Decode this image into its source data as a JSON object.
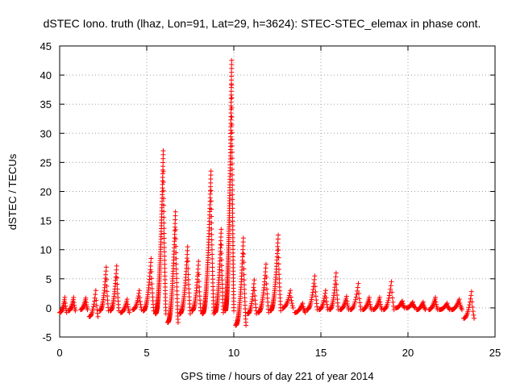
{
  "chart_data": {
    "type": "scatter",
    "title": "dSTEC Iono. truth (lhaz, Lon=91, Lat=29, h=3624): STEC-STEC_elemax in phase cont.",
    "xlabel": "GPS time / hours of day 221 of year 2014",
    "ylabel": "dSTEC  / TECUs",
    "xlim": [
      0,
      25
    ],
    "ylim": [
      -5,
      45
    ],
    "xticks": [
      0,
      5,
      10,
      15,
      20,
      25
    ],
    "yticks": [
      -5,
      0,
      5,
      10,
      15,
      20,
      25,
      30,
      35,
      40,
      45
    ],
    "grid": true,
    "marker": "+",
    "color": "#ff0000",
    "arcs": [
      {
        "x": [
          0.0,
          0.4
        ],
        "y": [
          -0.8,
          1.8
        ]
      },
      {
        "x": [
          0.5,
          0.9
        ],
        "y": [
          -0.5,
          1.8
        ]
      },
      {
        "x": [
          1.2,
          1.6
        ],
        "y": [
          -0.3,
          1.7
        ]
      },
      {
        "x": [
          1.7,
          2.2
        ],
        "y": [
          -1.5,
          3.0
        ]
      },
      {
        "x": [
          2.3,
          2.8
        ],
        "y": [
          -0.5,
          7.0
        ]
      },
      {
        "x": [
          2.9,
          3.4
        ],
        "y": [
          -0.5,
          7.2
        ]
      },
      {
        "x": [
          3.5,
          4.0
        ],
        "y": [
          -0.8,
          1.5
        ]
      },
      {
        "x": [
          4.2,
          4.7
        ],
        "y": [
          -0.3,
          3.0
        ]
      },
      {
        "x": [
          4.8,
          5.4
        ],
        "y": [
          -0.5,
          8.5
        ]
      },
      {
        "x": [
          5.5,
          6.1
        ],
        "y": [
          -1.0,
          27.0
        ]
      },
      {
        "x": [
          6.2,
          6.8
        ],
        "y": [
          -2.5,
          16.5
        ]
      },
      {
        "x": [
          6.9,
          7.5
        ],
        "y": [
          -1.0,
          10.5
        ]
      },
      {
        "x": [
          7.6,
          8.1
        ],
        "y": [
          -0.5,
          8.0
        ]
      },
      {
        "x": [
          8.2,
          8.85
        ],
        "y": [
          -1.0,
          23.5
        ]
      },
      {
        "x": [
          8.9,
          9.4
        ],
        "y": [
          -0.8,
          13.5
        ]
      },
      {
        "x": [
          9.5,
          10.0
        ],
        "y": [
          -0.5,
          42.5
        ]
      },
      {
        "x": [
          10.1,
          10.7
        ],
        "y": [
          -3.0,
          12.0
        ]
      },
      {
        "x": [
          10.8,
          11.3
        ],
        "y": [
          -1.0,
          4.8
        ]
      },
      {
        "x": [
          11.4,
          12.0
        ],
        "y": [
          -0.8,
          7.5
        ]
      },
      {
        "x": [
          12.1,
          12.7
        ],
        "y": [
          -0.5,
          12.5
        ]
      },
      {
        "x": [
          12.8,
          13.4
        ],
        "y": [
          0.0,
          3.0
        ]
      },
      {
        "x": [
          13.5,
          14.1
        ],
        "y": [
          -0.8,
          0.8
        ]
      },
      {
        "x": [
          14.2,
          14.8
        ],
        "y": [
          -0.3,
          5.5
        ]
      },
      {
        "x": [
          14.9,
          15.4
        ],
        "y": [
          -0.3,
          3.0
        ]
      },
      {
        "x": [
          15.5,
          16.0
        ],
        "y": [
          -0.3,
          6.0
        ]
      },
      {
        "x": [
          16.1,
          16.6
        ],
        "y": [
          -0.3,
          2.0
        ]
      },
      {
        "x": [
          16.7,
          17.3
        ],
        "y": [
          -0.3,
          4.2
        ]
      },
      {
        "x": [
          17.4,
          17.9
        ],
        "y": [
          -0.3,
          1.8
        ]
      },
      {
        "x": [
          18.0,
          18.5
        ],
        "y": [
          -0.3,
          1.8
        ]
      },
      {
        "x": [
          18.6,
          19.2
        ],
        "y": [
          -0.3,
          4.5
        ]
      },
      {
        "x": [
          19.3,
          19.8
        ],
        "y": [
          0.0,
          1.2
        ]
      },
      {
        "x": [
          19.9,
          20.4
        ],
        "y": [
          0.0,
          1.0
        ]
      },
      {
        "x": [
          20.5,
          21.0
        ],
        "y": [
          -0.3,
          1.0
        ]
      },
      {
        "x": [
          21.2,
          21.7
        ],
        "y": [
          -0.3,
          1.8
        ]
      },
      {
        "x": [
          21.8,
          22.4
        ],
        "y": [
          -0.3,
          0.8
        ]
      },
      {
        "x": [
          22.5,
          23.1
        ],
        "y": [
          -0.3,
          1.5
        ]
      },
      {
        "x": [
          23.2,
          23.8
        ],
        "y": [
          -1.8,
          2.8
        ]
      }
    ]
  }
}
